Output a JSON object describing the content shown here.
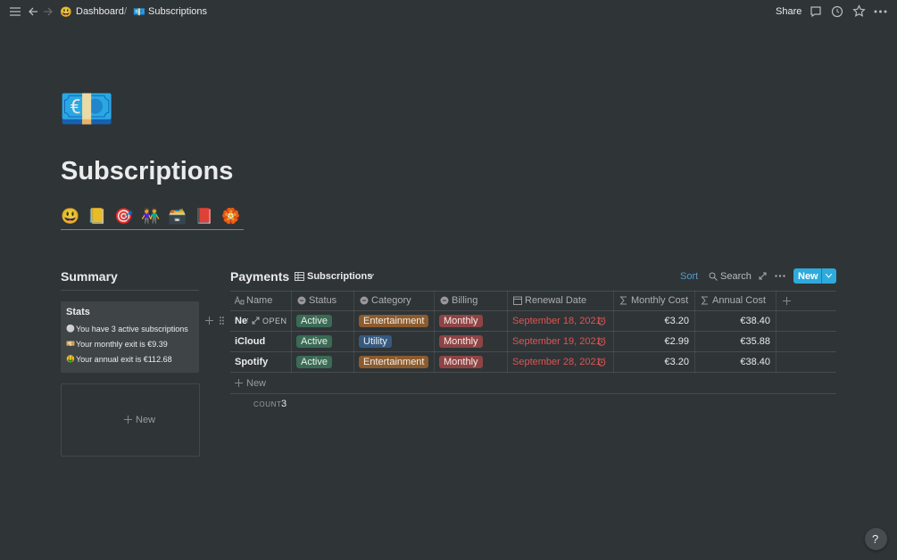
{
  "topbar": {
    "breadcrumb": [
      {
        "icon": "😃",
        "label": "Dashboard"
      },
      {
        "icon": "💶",
        "label": "Subscriptions"
      }
    ],
    "separator": "/",
    "share": "Share"
  },
  "page": {
    "icon": "💶",
    "title": "Subscriptions",
    "links": [
      "😃",
      "📒",
      "🎯",
      "👫",
      "🗃️",
      "📕",
      "🏵️"
    ]
  },
  "summary": {
    "title": "Summary",
    "stats": {
      "title": "Stats",
      "lines": [
        {
          "icon": "⚪",
          "text": "You have 3 active subscriptions"
        },
        {
          "icon": "💴",
          "text": "Your monthly exit is €9.39"
        },
        {
          "icon": "🤑",
          "text": "Your annual exit is  €112.68"
        }
      ]
    },
    "new": "New"
  },
  "payments": {
    "title": "Payments",
    "view": "Subscriptions",
    "sort": "Sort",
    "search": "Search",
    "new": "New",
    "columns": [
      "Name",
      "Status",
      "Category",
      "Billing",
      "Renewal Date",
      "Monthly Cost",
      "Annual Cost"
    ],
    "rows": [
      [
        "Net",
        "Active",
        "Entertainment",
        "Monthly",
        "September 18, 2021",
        "€3.20",
        "€38.40"
      ],
      [
        "iCloud",
        "Active",
        "Utility",
        "Monthly",
        "September 19, 2021",
        "€2.99",
        "€35.88"
      ],
      [
        "Spotify",
        "Active",
        "Entertainment",
        "Monthly",
        "September 28, 2021",
        "€3.20",
        "€38.40"
      ]
    ],
    "open": "OPEN",
    "new_row": "New",
    "count_label": "COUNT",
    "count": 3
  },
  "help": "?"
}
